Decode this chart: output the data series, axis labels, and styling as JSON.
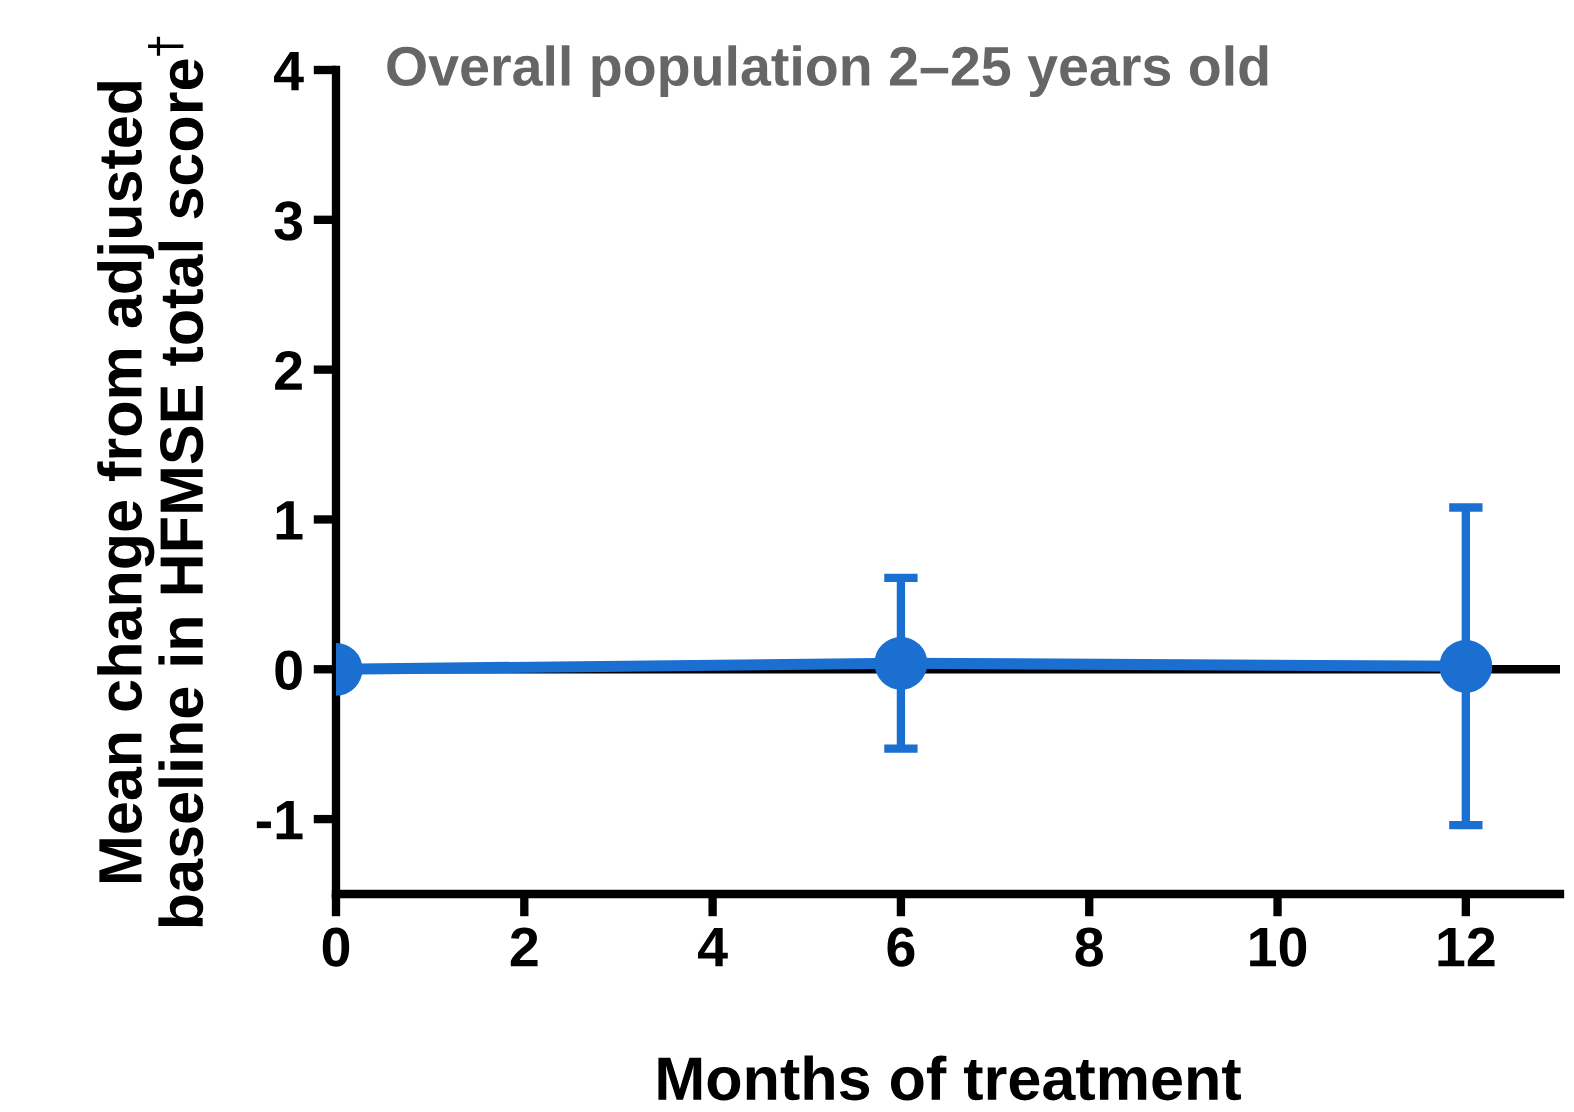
{
  "chart_data": {
    "type": "line",
    "title": "Overall population 2–25 years old",
    "xlabel": "Months of treatment",
    "ylabel": "Mean change from adjusted\nbaseline in HFMSE total score$^{†}$",
    "x": [
      0,
      6,
      12
    ],
    "series": [
      {
        "color": "#1a6fd0",
        "values": [
          0,
          0.04,
          0.02
        ],
        "errors": [
          null,
          0.57,
          1.06
        ]
      }
    ],
    "xlim": [
      0,
      13
    ],
    "ylim": [
      -1.5,
      4
    ],
    "xticks": [
      0,
      2,
      4,
      6,
      8,
      10,
      12
    ],
    "yticks": [
      -1,
      0,
      1,
      2,
      3,
      4
    ],
    "ref_lines": [
      {
        "axis": "y",
        "value": 0,
        "color": "#000000"
      }
    ],
    "marker": "circle",
    "line_style": "solid",
    "grid": false,
    "legend": false
  }
}
